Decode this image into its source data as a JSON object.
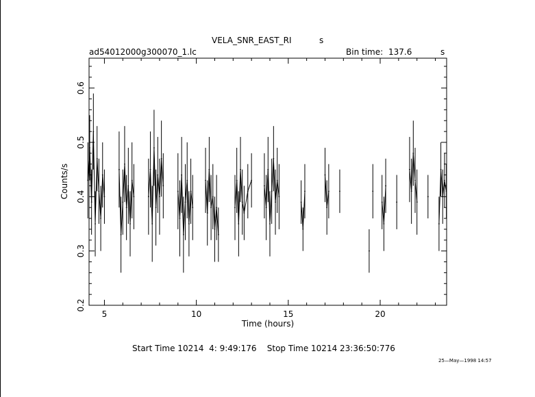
{
  "header": {
    "title": "VELA_SNR_EAST_RI",
    "title_suffix": "s",
    "filename": "ad54012000g300070_1.lc",
    "bin_time_label": "Bin time:",
    "bin_time_value": "137.6",
    "bin_time_unit": "s"
  },
  "footer": {
    "time_range": "Start Time 10214  4: 9:49:176    Stop Time 10214 23:36:50:776",
    "date_stamp": "25—May—1998 14:57"
  },
  "chart_data": {
    "type": "line",
    "title": "VELA_SNR_EAST_RI",
    "xlabel": "Time (hours)",
    "ylabel": "Counts/s",
    "xlim": [
      4.164,
      23.614
    ],
    "ylim": [
      0.2,
      0.655
    ],
    "x_ticks": [
      5,
      10,
      15,
      20
    ],
    "y_ticks": [
      0.2,
      0.3,
      0.4,
      0.5,
      0.6
    ],
    "x_tick_labels": [
      "5",
      "10",
      "15",
      "20"
    ],
    "y_tick_labels": [
      "0.2",
      "0.3",
      "0.4",
      "0.5",
      "0.6"
    ],
    "grid": false,
    "series": [
      {
        "style": "error-bar segments",
        "color": "#000000",
        "segments": [
          {
            "x": [
              4.1,
              4.2,
              4.3,
              4.4,
              4.5,
              4.6,
              4.7,
              4.8,
              4.9,
              5.0
            ],
            "y": [
              0.43,
              0.49,
              0.39,
              0.52,
              0.35,
              0.47,
              0.41,
              0.36,
              0.44,
              0.4
            ],
            "err": [
              0.07,
              0.06,
              0.06,
              0.07,
              0.06,
              0.06,
              0.06,
              0.06,
              0.06,
              0.05
            ]
          },
          {
            "x": [
              5.8,
              5.9,
              6.0,
              6.1,
              6.2,
              6.3,
              6.4,
              6.5,
              6.6
            ],
            "y": [
              0.45,
              0.33,
              0.39,
              0.46,
              0.38,
              0.42,
              0.35,
              0.43,
              0.4
            ],
            "err": [
              0.07,
              0.07,
              0.06,
              0.07,
              0.06,
              0.07,
              0.06,
              0.07,
              0.06
            ]
          },
          {
            "x": [
              7.4,
              7.5,
              7.6,
              7.7,
              7.8,
              7.9,
              8.0,
              8.1,
              8.2
            ],
            "y": [
              0.4,
              0.45,
              0.35,
              0.49,
              0.38,
              0.44,
              0.4,
              0.47,
              0.42
            ],
            "err": [
              0.07,
              0.07,
              0.07,
              0.07,
              0.07,
              0.07,
              0.07,
              0.07,
              0.06
            ]
          },
          {
            "x": [
              9.0,
              9.1,
              9.2,
              9.3,
              9.4,
              9.5,
              9.6,
              9.7,
              9.8
            ],
            "y": [
              0.41,
              0.36,
              0.44,
              0.33,
              0.39,
              0.43,
              0.35,
              0.41,
              0.38
            ],
            "err": [
              0.07,
              0.07,
              0.07,
              0.07,
              0.07,
              0.07,
              0.06,
              0.06,
              0.06
            ]
          },
          {
            "x": [
              10.5,
              10.6,
              10.7,
              10.8,
              10.9,
              11.0,
              11.1,
              11.2
            ],
            "y": [
              0.43,
              0.37,
              0.45,
              0.38,
              0.4,
              0.34,
              0.38,
              0.33
            ],
            "err": [
              0.06,
              0.06,
              0.06,
              0.06,
              0.06,
              0.06,
              0.06,
              0.05
            ]
          },
          {
            "x": [
              12.1,
              12.2,
              12.3,
              12.4,
              12.5,
              12.6,
              12.8,
              13.0
            ],
            "y": [
              0.38,
              0.43,
              0.35,
              0.45,
              0.39,
              0.37,
              0.41,
              0.43
            ],
            "err": [
              0.06,
              0.06,
              0.06,
              0.06,
              0.06,
              0.05,
              0.05,
              0.05
            ]
          },
          {
            "x": [
              13.7,
              13.8,
              13.9,
              14.0,
              14.1,
              14.2,
              14.3,
              14.4,
              14.5
            ],
            "y": [
              0.42,
              0.38,
              0.45,
              0.35,
              0.41,
              0.47,
              0.39,
              0.43,
              0.4
            ],
            "err": [
              0.06,
              0.06,
              0.06,
              0.06,
              0.06,
              0.06,
              0.06,
              0.06,
              0.06
            ]
          },
          {
            "x": [
              15.7,
              15.8,
              15.9
            ],
            "y": [
              0.39,
              0.34,
              0.41
            ],
            "err": [
              0.04,
              0.04,
              0.05
            ]
          },
          {
            "x": [
              17.0,
              17.1,
              17.2
            ],
            "y": [
              0.44,
              0.38,
              0.41
            ],
            "err": [
              0.05,
              0.05,
              0.05
            ]
          },
          {
            "x": [
              17.8
            ],
            "y": [
              0.41
            ],
            "err": [
              0.04
            ]
          },
          {
            "x": [
              19.4
            ],
            "y": [
              0.3
            ],
            "err": [
              0.04
            ]
          },
          {
            "x": [
              19.6
            ],
            "y": [
              0.41
            ],
            "err": [
              0.05
            ]
          },
          {
            "x": [
              20.1,
              20.2,
              20.3
            ],
            "y": [
              0.39,
              0.35,
              0.42
            ],
            "err": [
              0.05,
              0.05,
              0.05
            ]
          },
          {
            "x": [
              20.9
            ],
            "y": [
              0.39
            ],
            "err": [
              0.05
            ]
          },
          {
            "x": [
              21.6,
              21.7,
              21.8,
              21.9,
              22.0
            ],
            "y": [
              0.45,
              0.41,
              0.48,
              0.43,
              0.39
            ],
            "err": [
              0.06,
              0.06,
              0.06,
              0.06,
              0.06
            ]
          },
          {
            "x": [
              22.6
            ],
            "y": [
              0.4
            ],
            "err": [
              0.04
            ]
          },
          {
            "x": [
              23.2,
              23.3,
              23.4,
              23.5,
              23.6
            ],
            "y": [
              0.35,
              0.45,
              0.4,
              0.43,
              0.41
            ],
            "err": [
              0.05,
              0.05,
              0.05,
              0.05,
              0.05
            ]
          }
        ]
      }
    ]
  }
}
